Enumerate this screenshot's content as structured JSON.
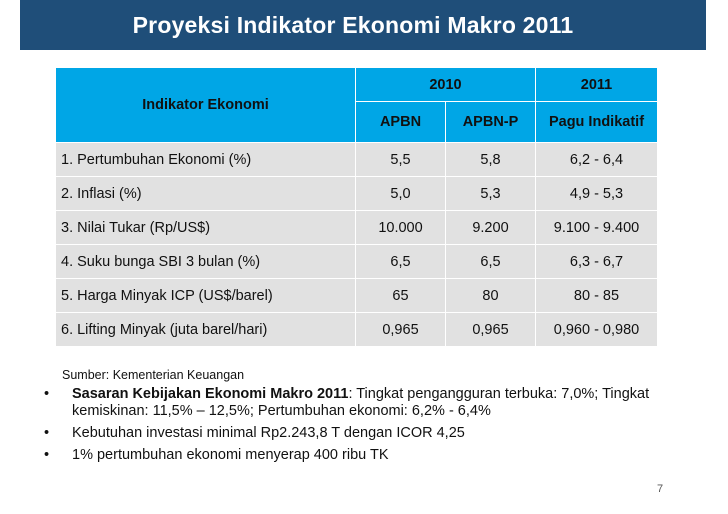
{
  "header": {
    "title": "Proyeksi Indikator Ekonomi Makro 2011"
  },
  "table": {
    "col_indicator": "Indikator Ekonomi",
    "group_2010": "2010",
    "group_2011": "2011",
    "sub_apbn": "APBN",
    "sub_apbnp": "APBN-P",
    "sub_pagu": "Pagu Indikatif",
    "rows": [
      {
        "label": "1. Pertumbuhan Ekonomi (%)",
        "apbn": "5,5",
        "apbnp": "5,8",
        "pagu": "6,2 - 6,4"
      },
      {
        "label": "2. Inflasi (%)",
        "apbn": "5,0",
        "apbnp": "5,3",
        "pagu": "4,9 - 5,3"
      },
      {
        "label": "3. Nilai Tukar (Rp/US$)",
        "apbn": "10.000",
        "apbnp": "9.200",
        "pagu": "9.100 - 9.400"
      },
      {
        "label": "4. Suku bunga SBI 3 bulan (%)",
        "apbn": "6,5",
        "apbnp": "6,5",
        "pagu": "6,3 - 6,7"
      },
      {
        "label": "5. Harga Minyak ICP (US$/barel)",
        "apbn": "65",
        "apbnp": "80",
        "pagu": "80 - 85"
      },
      {
        "label": "6. Lifting Minyak (juta barel/hari)",
        "apbn": "0,965",
        "apbnp": "0,965",
        "pagu": "0,960 - 0,980"
      }
    ]
  },
  "source": "Sumber: Kementerian Keuangan",
  "bullets": [
    {
      "bold": "Sasaran Kebijakan Ekonomi Makro 2011",
      "text": ": Tingkat pengangguran terbuka: 7,0%; Tingkat kemiskinan:  11,5% – 12,5%;  Pertumbuhan ekonomi:  6,2% - 6,4%"
    },
    {
      "bold": "",
      "text": "Kebutuhan investasi minimal Rp2.243,8 T dengan ICOR 4,25"
    },
    {
      "bold": "",
      "text": "1% pertumbuhan ekonomi menyerap 400 ribu TK"
    }
  ],
  "bullet_char": "•",
  "page_number": "7",
  "colors": {
    "title_bar": "#1f4e79",
    "header_cells": "#00a6e6",
    "row_cells": "#e1e1e1"
  }
}
